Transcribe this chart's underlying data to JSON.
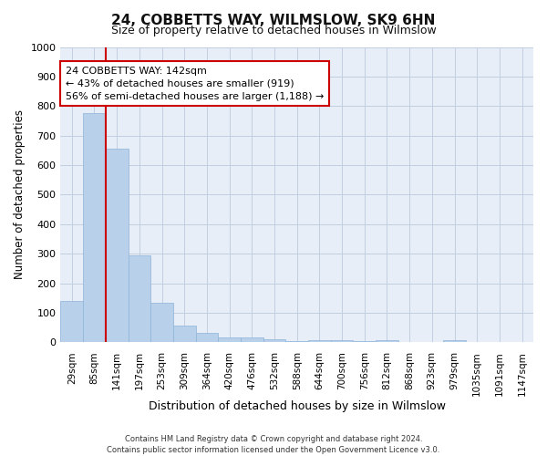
{
  "title": "24, COBBETTS WAY, WILMSLOW, SK9 6HN",
  "subtitle": "Size of property relative to detached houses in Wilmslow",
  "xlabel": "Distribution of detached houses by size in Wilmslow",
  "ylabel": "Number of detached properties",
  "bar_labels": [
    "29sqm",
    "85sqm",
    "141sqm",
    "197sqm",
    "253sqm",
    "309sqm",
    "364sqm",
    "420sqm",
    "476sqm",
    "532sqm",
    "588sqm",
    "644sqm",
    "700sqm",
    "756sqm",
    "812sqm",
    "868sqm",
    "923sqm",
    "979sqm",
    "1035sqm",
    "1091sqm",
    "1147sqm"
  ],
  "bar_values": [
    140,
    775,
    655,
    295,
    135,
    57,
    32,
    18,
    18,
    10,
    5,
    8,
    8,
    5,
    8,
    0,
    0,
    8,
    0,
    0,
    0
  ],
  "bar_color": "#b8d0ea",
  "bar_edge_color": "#8db4d8",
  "property_line_index": 2,
  "annotation_text": "24 COBBETTS WAY: 142sqm\n← 43% of detached houses are smaller (919)\n56% of semi-detached houses are larger (1,188) →",
  "annotation_box_facecolor": "#ffffff",
  "annotation_box_edgecolor": "#cc0000",
  "vline_color": "#cc0000",
  "grid_color": "#c0cfe0",
  "background_color": "#e8eef8",
  "footer_line1": "Contains HM Land Registry data © Crown copyright and database right 2024.",
  "footer_line2": "Contains public sector information licensed under the Open Government Licence v3.0.",
  "ylim": [
    0,
    1000
  ],
  "yticks": [
    0,
    100,
    200,
    300,
    400,
    500,
    600,
    700,
    800,
    900,
    1000
  ]
}
